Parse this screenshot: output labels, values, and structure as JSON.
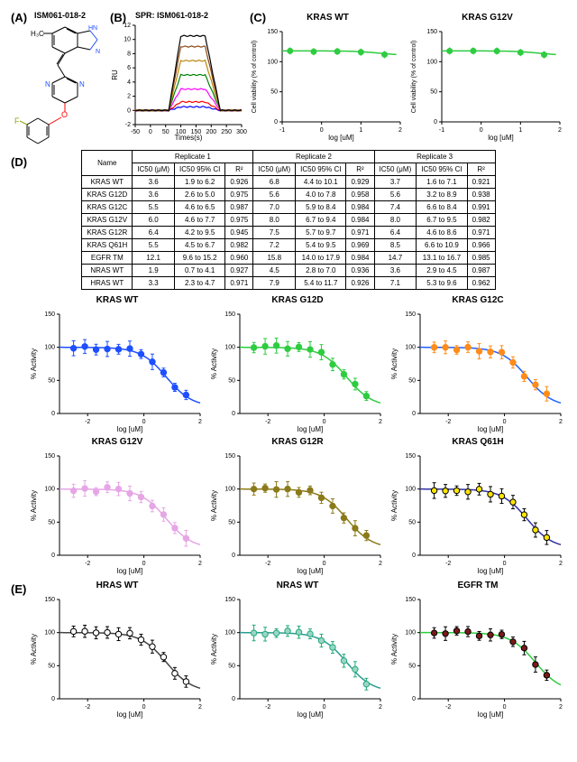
{
  "compound_name": "ISM061-018-2",
  "panelA": {
    "label": "(A)"
  },
  "panelB": {
    "label": "(B)",
    "title": "SPR: ISM061-018-2",
    "xlabel": "Times(s)",
    "ylabel": "RU",
    "xlim": [
      -50,
      300
    ],
    "ylim": [
      -2,
      12
    ],
    "xticks": [
      -50,
      0,
      50,
      100,
      150,
      200,
      250,
      300
    ],
    "yticks": [
      -2,
      0,
      2,
      4,
      6,
      8,
      10,
      12
    ],
    "curve_colors": [
      "#0000ff",
      "#ff0000",
      "#ff00ff",
      "#008000",
      "#b8860b",
      "#8b4513",
      "#000000"
    ],
    "curve_plateaus": [
      0.5,
      1.2,
      3.0,
      5.0,
      7.0,
      9.0,
      10.5
    ]
  },
  "panelC": {
    "label": "(C)",
    "charts": [
      {
        "title": "KRAS WT",
        "color": "#2ecc40",
        "xlabel": "log [uM]",
        "ylabel": "Cell viability (% of control)"
      },
      {
        "title": "KRAS G12V",
        "color": "#2ecc40",
        "xlabel": "log [uM]",
        "ylabel": "Cell viability (% of control)"
      }
    ],
    "xlim": [
      -1,
      2
    ],
    "ylim": [
      0,
      150
    ],
    "yticks": [
      0,
      50,
      100,
      150
    ]
  },
  "panelD": {
    "label": "(D)",
    "table": {
      "replicate_headers": [
        "Replicate 1",
        "Replicate 2",
        "Replicate 3"
      ],
      "sub_headers": [
        "Name",
        "IC50 (μM)",
        "IC50 95% CI",
        "R²",
        "IC50 (μM)",
        "IC50 95% CI",
        "R²",
        "IC50 (μM)",
        "IC50 95% CI",
        "R²"
      ],
      "rows": [
        [
          "KRAS WT",
          "3.6",
          "1.9 to 6.2",
          "0.926",
          "6.8",
          "4.4 to 10.1",
          "0.929",
          "3.7",
          "1.6 to 7.1",
          "0.921"
        ],
        [
          "KRAS G12D",
          "3.6",
          "2.6 to 5.0",
          "0.975",
          "5.6",
          "4.0 to 7.8",
          "0.958",
          "5.6",
          "3.2 to 8.9",
          "0.938"
        ],
        [
          "KRAS G12C",
          "5.5",
          "4.6 to 6.5",
          "0.987",
          "7.0",
          "5.9 to 8.4",
          "0.984",
          "7.4",
          "6.6 to 8.4",
          "0.991"
        ],
        [
          "KRAS G12V",
          "6.0",
          "4.6 to 7.7",
          "0.975",
          "8.0",
          "6.7 to 9.4",
          "0.984",
          "8.0",
          "6.7 to 9.5",
          "0.982"
        ],
        [
          "KRAS G12R",
          "6.4",
          "4.2 to 9.5",
          "0.945",
          "7.5",
          "5.7 to 9.7",
          "0.971",
          "6.4",
          "4.6 to 8.6",
          "0.971"
        ],
        [
          "KRAS Q61H",
          "5.5",
          "4.5 to 6.7",
          "0.982",
          "7.2",
          "5.4 to 9.5",
          "0.969",
          "8.5",
          "6.6 to 10.9",
          "0.966"
        ],
        [
          "EGFR TM",
          "12.1",
          "9.6 to 15.2",
          "0.960",
          "15.8",
          "14.0 to 17.9",
          "0.984",
          "14.7",
          "13.1 to 16.7",
          "0.985"
        ],
        [
          "NRAS WT",
          "1.9",
          "0.7 to 4.1",
          "0.927",
          "4.5",
          "2.8 to 7.0",
          "0.936",
          "3.6",
          "2.9 to 4.5",
          "0.987"
        ],
        [
          "HRAS WT",
          "3.3",
          "2.3 to 4.7",
          "0.971",
          "7.9",
          "5.4 to 11.7",
          "0.926",
          "7.1",
          "5.3 to 9.6",
          "0.962"
        ]
      ]
    },
    "charts": [
      {
        "title": "KRAS WT",
        "marker_color": "#1e4fff",
        "line_color": "#1e4fff"
      },
      {
        "title": "KRAS G12D",
        "marker_color": "#2ecc40",
        "line_color": "#2ecc40"
      },
      {
        "title": "KRAS G12C",
        "marker_color": "#ff8c1a",
        "line_color": "#2060ff"
      },
      {
        "title": "KRAS G12V",
        "marker_color": "#e6a6e6",
        "line_color": "#e6a6e6"
      },
      {
        "title": "KRAS G12R",
        "marker_color": "#8b7a1a",
        "line_color": "#8b7a1a"
      },
      {
        "title": "KRAS Q61H",
        "marker_color": "#ffe600",
        "line_color": "#3030a0",
        "marker_stroke": "#000"
      }
    ],
    "chart_common": {
      "xlabel": "log [uM]",
      "ylabel": "% Activity",
      "xlim": [
        -3,
        2
      ],
      "ylim": [
        0,
        150
      ],
      "xticks": [
        -2,
        0,
        2
      ],
      "yticks": [
        0,
        50,
        100,
        150
      ],
      "logic50_approx": 0.8,
      "xdata": [
        -2.5,
        -2.1,
        -1.7,
        -1.3,
        -0.9,
        -0.5,
        -0.1,
        0.3,
        0.7,
        1.1,
        1.5
      ]
    }
  },
  "panelE": {
    "label": "(E)",
    "charts": [
      {
        "title": "HRAS WT",
        "marker_color": "#ffffff",
        "marker_stroke": "#000",
        "line_color": "#444"
      },
      {
        "title": "NRAS WT",
        "marker_color": "#9ad6c8",
        "marker_stroke": "#2a7",
        "line_color": "#2a9d8f"
      },
      {
        "title": "EGFR TM",
        "marker_color": "#7a1a1a",
        "marker_stroke": "#000",
        "line_color": "#2ecc40"
      }
    ],
    "chart_common": {
      "xlabel": "log [uM]",
      "ylabel": "% Activity",
      "xlim": [
        -3,
        2
      ],
      "ylim": [
        0,
        150
      ],
      "xticks": [
        -2,
        0,
        2
      ],
      "yticks": [
        0,
        50,
        100,
        150
      ],
      "logic50_approx": 0.8,
      "egfr_ic50": 1.1,
      "xdata": [
        -2.5,
        -2.1,
        -1.7,
        -1.3,
        -0.9,
        -0.5,
        -0.1,
        0.3,
        0.7,
        1.1,
        1.5
      ]
    }
  },
  "molecule": {
    "atom_colors": {
      "C": "#000",
      "N": "#1e4fff",
      "O": "#ff0000",
      "F": "#8aa61a"
    }
  }
}
